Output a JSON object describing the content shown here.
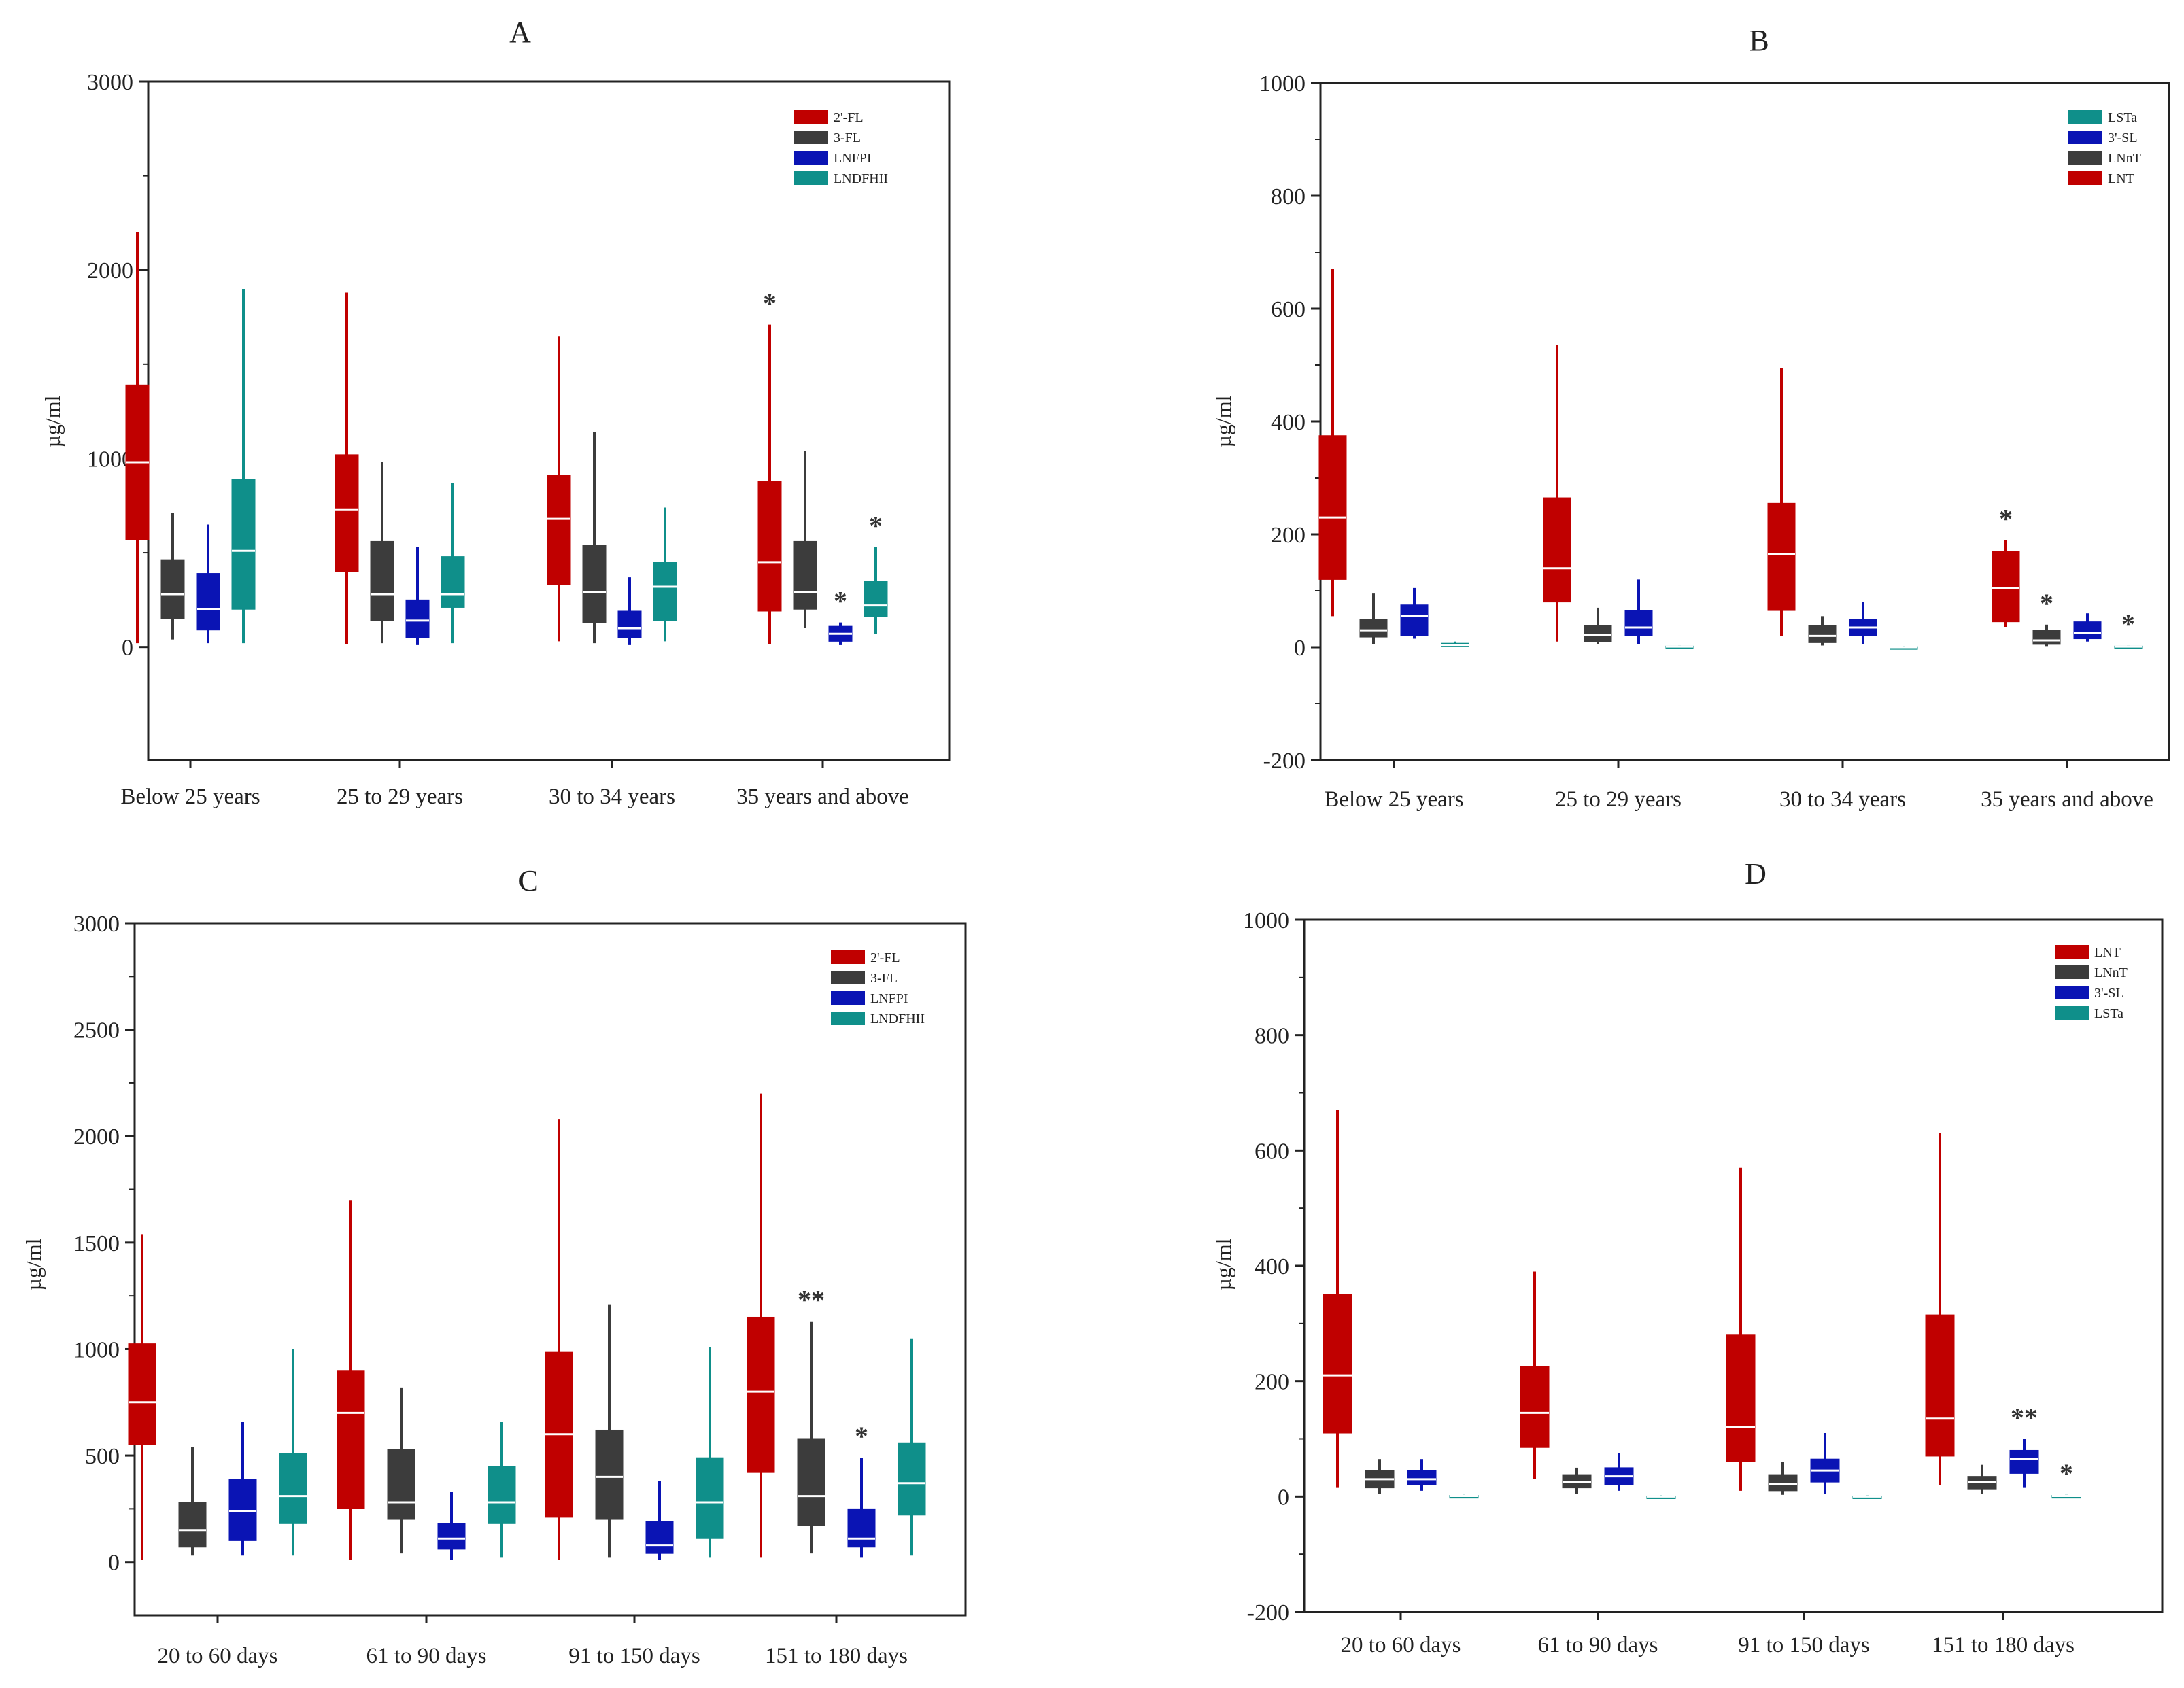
{
  "colors": {
    "2'-FL": "#c00000",
    "3-FL": "#3c3c3c",
    "LNFPI": "#0a14b4",
    "LNDFHII": "#0f8f8a",
    "LSTa": "#0f8f8a",
    "3'-SL": "#0a14b4",
    "LNnT": "#3c3c3c",
    "LNT": "#c00000"
  },
  "chart_data": [
    {
      "type": "box",
      "title": "A",
      "ylabel": "µg/ml",
      "ylim": [
        -600,
        3000
      ],
      "yticks": [
        0,
        1000,
        2000,
        3000
      ],
      "categories": [
        "Below 25 years",
        "25 to 29 years",
        "30 to 34 years",
        "35 years and above"
      ],
      "legend": {
        "placement": "top-right",
        "entries": [
          "2'-FL",
          "3-FL",
          "LNFPI",
          "LNDFHII"
        ]
      },
      "series": [
        {
          "name": "2'-FL",
          "boxes": [
            {
              "min": 20,
              "q1": 570,
              "median": 980,
              "q3": 1390,
              "max": 2200,
              "mark": ""
            },
            {
              "min": 15,
              "q1": 400,
              "median": 730,
              "q3": 1020,
              "max": 1880,
              "mark": ""
            },
            {
              "min": 30,
              "q1": 330,
              "median": 680,
              "q3": 910,
              "max": 1650,
              "mark": ""
            },
            {
              "min": 15,
              "q1": 190,
              "median": 450,
              "q3": 880,
              "max": 1710,
              "mark": "*"
            }
          ]
        },
        {
          "name": "3-FL",
          "boxes": [
            {
              "min": 40,
              "q1": 150,
              "median": 280,
              "q3": 460,
              "max": 710,
              "mark": ""
            },
            {
              "min": 20,
              "q1": 140,
              "median": 280,
              "q3": 560,
              "max": 980,
              "mark": ""
            },
            {
              "min": 20,
              "q1": 130,
              "median": 290,
              "q3": 540,
              "max": 1140,
              "mark": ""
            },
            {
              "min": 100,
              "q1": 200,
              "median": 290,
              "q3": 560,
              "max": 1040,
              "mark": ""
            }
          ]
        },
        {
          "name": "LNFPI",
          "boxes": [
            {
              "min": 20,
              "q1": 90,
              "median": 200,
              "q3": 390,
              "max": 650,
              "mark": ""
            },
            {
              "min": 10,
              "q1": 50,
              "median": 140,
              "q3": 250,
              "max": 530,
              "mark": ""
            },
            {
              "min": 10,
              "q1": 50,
              "median": 100,
              "q3": 190,
              "max": 370,
              "mark": ""
            },
            {
              "min": 10,
              "q1": 30,
              "median": 70,
              "q3": 110,
              "max": 130,
              "mark": "*"
            }
          ]
        },
        {
          "name": "LNDFHII",
          "boxes": [
            {
              "min": 20,
              "q1": 200,
              "median": 510,
              "q3": 890,
              "max": 1900,
              "mark": ""
            },
            {
              "min": 20,
              "q1": 210,
              "median": 280,
              "q3": 480,
              "max": 870,
              "mark": ""
            },
            {
              "min": 30,
              "q1": 140,
              "median": 320,
              "q3": 450,
              "max": 740,
              "mark": ""
            },
            {
              "min": 70,
              "q1": 160,
              "median": 220,
              "q3": 350,
              "max": 530,
              "mark": "*"
            }
          ]
        }
      ]
    },
    {
      "type": "box",
      "title": "B",
      "ylabel": "µg/ml",
      "ylim": [
        -200,
        1000
      ],
      "yticks": [
        -200,
        0,
        200,
        400,
        600,
        800,
        1000
      ],
      "categories": [
        "Below 25 years",
        "25 to 29 years",
        "30 to 34 years",
        "35 years and above"
      ],
      "legend": {
        "placement": "top-right",
        "entries": [
          "LSTa",
          "3'-SL",
          "LNnT",
          "LNT"
        ]
      },
      "series": [
        {
          "name": "LNT",
          "boxes": [
            {
              "min": 55,
              "q1": 120,
              "median": 230,
              "q3": 375,
              "max": 670,
              "mark": ""
            },
            {
              "min": 10,
              "q1": 80,
              "median": 140,
              "q3": 265,
              "max": 535,
              "mark": ""
            },
            {
              "min": 20,
              "q1": 65,
              "median": 165,
              "q3": 255,
              "max": 495,
              "mark": ""
            },
            {
              "min": 35,
              "q1": 45,
              "median": 105,
              "q3": 170,
              "max": 190,
              "mark": "*"
            }
          ]
        },
        {
          "name": "LNnT",
          "boxes": [
            {
              "min": 5,
              "q1": 18,
              "median": 30,
              "q3": 50,
              "max": 95,
              "mark": ""
            },
            {
              "min": 5,
              "q1": 10,
              "median": 22,
              "q3": 38,
              "max": 70,
              "mark": ""
            },
            {
              "min": 3,
              "q1": 8,
              "median": 20,
              "q3": 38,
              "max": 55,
              "mark": ""
            },
            {
              "min": 2,
              "q1": 5,
              "median": 12,
              "q3": 30,
              "max": 40,
              "mark": "*"
            }
          ]
        },
        {
          "name": "3'-SL",
          "boxes": [
            {
              "min": 15,
              "q1": 20,
              "median": 55,
              "q3": 75,
              "max": 105,
              "mark": ""
            },
            {
              "min": 5,
              "q1": 20,
              "median": 35,
              "q3": 65,
              "max": 120,
              "mark": ""
            },
            {
              "min": 5,
              "q1": 20,
              "median": 35,
              "q3": 50,
              "max": 80,
              "mark": ""
            },
            {
              "min": 10,
              "q1": 15,
              "median": 25,
              "q3": 45,
              "max": 60,
              "mark": ""
            }
          ]
        },
        {
          "name": "LSTa",
          "boxes": [
            {
              "min": 0,
              "q1": 1,
              "median": 4,
              "q3": 7,
              "max": 10,
              "mark": ""
            },
            {
              "min": 0,
              "q1": 0,
              "median": 1,
              "q3": 2,
              "max": 3,
              "mark": ""
            },
            {
              "min": 0,
              "q1": 0,
              "median": 0,
              "q3": 1,
              "max": 2,
              "mark": ""
            },
            {
              "min": 0,
              "q1": 0,
              "median": 1,
              "q3": 2,
              "max": 3,
              "mark": "*"
            }
          ]
        }
      ]
    },
    {
      "type": "box",
      "title": "C",
      "ylabel": "µg/ml",
      "ylim": [
        -250,
        3000
      ],
      "yticks": [
        0,
        500,
        1000,
        1500,
        2000,
        2500,
        3000
      ],
      "categories": [
        "20 to 60 days",
        "61 to 90 days",
        "91 to 150 days",
        "151 to 180 days"
      ],
      "legend": {
        "placement": "top-right",
        "entries": [
          "2'-FL",
          "3-FL",
          "LNFPI",
          "LNDFHII"
        ]
      },
      "series": [
        {
          "name": "2'-FL",
          "boxes": [
            {
              "min": 10,
              "q1": 550,
              "median": 750,
              "q3": 1025,
              "max": 1540,
              "mark": ""
            },
            {
              "min": 10,
              "q1": 250,
              "median": 700,
              "q3": 900,
              "max": 1700,
              "mark": ""
            },
            {
              "min": 10,
              "q1": 210,
              "median": 600,
              "q3": 985,
              "max": 2080,
              "mark": ""
            },
            {
              "min": 20,
              "q1": 420,
              "median": 800,
              "q3": 1150,
              "max": 2200,
              "mark": ""
            }
          ]
        },
        {
          "name": "3-FL",
          "boxes": [
            {
              "min": 30,
              "q1": 70,
              "median": 150,
              "q3": 280,
              "max": 540,
              "mark": ""
            },
            {
              "min": 40,
              "q1": 200,
              "median": 280,
              "q3": 530,
              "max": 820,
              "mark": ""
            },
            {
              "min": 20,
              "q1": 200,
              "median": 400,
              "q3": 620,
              "max": 1210,
              "mark": ""
            },
            {
              "min": 40,
              "q1": 170,
              "median": 310,
              "q3": 580,
              "max": 1130,
              "mark": "**"
            }
          ]
        },
        {
          "name": "LNFPI",
          "boxes": [
            {
              "min": 30,
              "q1": 100,
              "median": 240,
              "q3": 390,
              "max": 660,
              "mark": ""
            },
            {
              "min": 10,
              "q1": 60,
              "median": 110,
              "q3": 180,
              "max": 330,
              "mark": ""
            },
            {
              "min": 10,
              "q1": 40,
              "median": 80,
              "q3": 190,
              "max": 380,
              "mark": ""
            },
            {
              "min": 20,
              "q1": 70,
              "median": 110,
              "q3": 250,
              "max": 490,
              "mark": "*"
            }
          ]
        },
        {
          "name": "LNDFHII",
          "boxes": [
            {
              "min": 30,
              "q1": 180,
              "median": 310,
              "q3": 510,
              "max": 1000,
              "mark": ""
            },
            {
              "min": 20,
              "q1": 180,
              "median": 280,
              "q3": 450,
              "max": 660,
              "mark": ""
            },
            {
              "min": 20,
              "q1": 110,
              "median": 280,
              "q3": 490,
              "max": 1010,
              "mark": ""
            },
            {
              "min": 30,
              "q1": 220,
              "median": 370,
              "q3": 560,
              "max": 1050,
              "mark": ""
            }
          ]
        }
      ]
    },
    {
      "type": "box",
      "title": "D",
      "ylabel": "µg/ml",
      "ylim": [
        -200,
        1000
      ],
      "yticks": [
        -200,
        0,
        200,
        400,
        600,
        800,
        1000
      ],
      "categories": [
        "20 to 60 days",
        "61 to 90 days",
        "91 to 150 days",
        "151 to 180 days"
      ],
      "legend": {
        "placement": "top-right",
        "entries": [
          "LNT",
          "LNnT",
          "3'-SL",
          "LSTa"
        ]
      },
      "series": [
        {
          "name": "LNT",
          "boxes": [
            {
              "min": 15,
              "q1": 110,
              "median": 210,
              "q3": 350,
              "max": 670,
              "mark": ""
            },
            {
              "min": 30,
              "q1": 85,
              "median": 145,
              "q3": 225,
              "max": 390,
              "mark": ""
            },
            {
              "min": 10,
              "q1": 60,
              "median": 120,
              "q3": 280,
              "max": 570,
              "mark": ""
            },
            {
              "min": 20,
              "q1": 70,
              "median": 135,
              "q3": 315,
              "max": 630,
              "mark": ""
            }
          ]
        },
        {
          "name": "LNnT",
          "boxes": [
            {
              "min": 5,
              "q1": 15,
              "median": 30,
              "q3": 45,
              "max": 65,
              "mark": ""
            },
            {
              "min": 5,
              "q1": 15,
              "median": 25,
              "q3": 38,
              "max": 50,
              "mark": ""
            },
            {
              "min": 3,
              "q1": 10,
              "median": 22,
              "q3": 38,
              "max": 60,
              "mark": ""
            },
            {
              "min": 5,
              "q1": 12,
              "median": 25,
              "q3": 35,
              "max": 55,
              "mark": ""
            }
          ]
        },
        {
          "name": "3'-SL",
          "boxes": [
            {
              "min": 10,
              "q1": 20,
              "median": 30,
              "q3": 45,
              "max": 65,
              "mark": ""
            },
            {
              "min": 10,
              "q1": 20,
              "median": 35,
              "q3": 50,
              "max": 75,
              "mark": ""
            },
            {
              "min": 5,
              "q1": 25,
              "median": 45,
              "q3": 65,
              "max": 110,
              "mark": ""
            },
            {
              "min": 15,
              "q1": 40,
              "median": 65,
              "q3": 80,
              "max": 100,
              "mark": "**"
            }
          ]
        },
        {
          "name": "LSTa",
          "boxes": [
            {
              "min": 0,
              "q1": 0,
              "median": 1,
              "q3": 2,
              "max": 3,
              "mark": ""
            },
            {
              "min": 0,
              "q1": 0,
              "median": 0,
              "q3": 1,
              "max": 2,
              "mark": ""
            },
            {
              "min": 0,
              "q1": 0,
              "median": 0,
              "q3": 1,
              "max": 2,
              "mark": ""
            },
            {
              "min": 0,
              "q1": 0,
              "median": 1,
              "q3": 2,
              "max": 3,
              "mark": "*"
            }
          ]
        }
      ]
    }
  ]
}
